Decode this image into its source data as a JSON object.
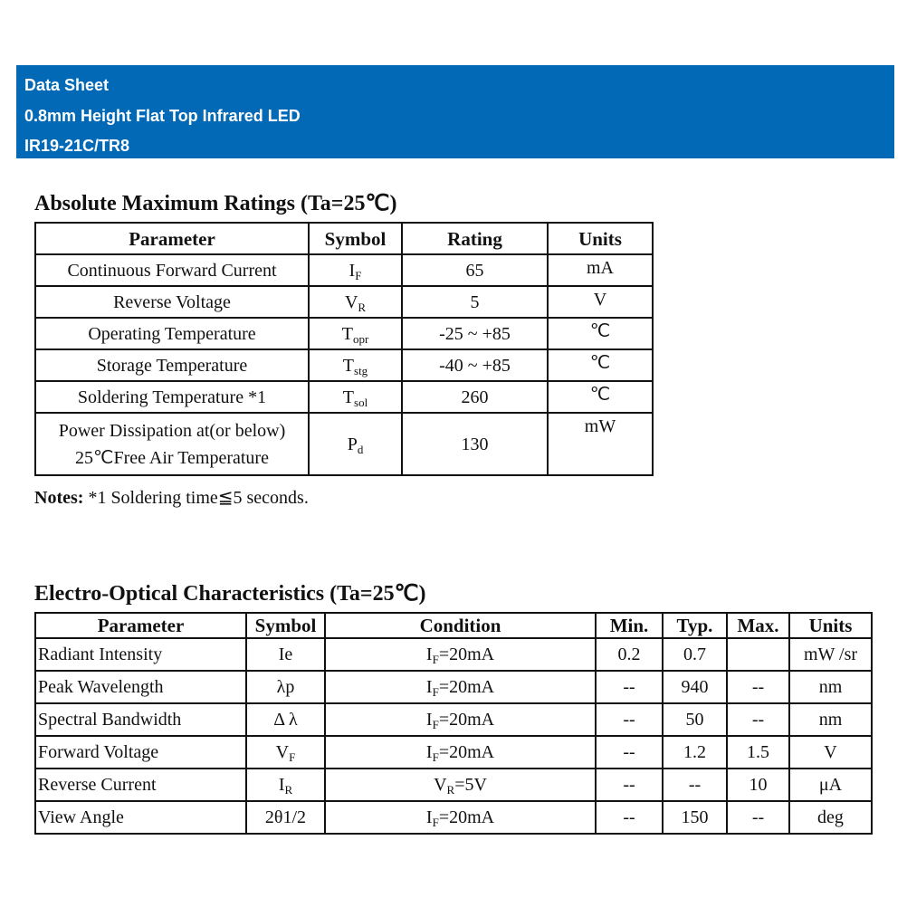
{
  "header": {
    "title": "Data Sheet",
    "subtitle": "0.8mm Height Flat Top Infrared LED",
    "part_number": "IR19-21C/TR8",
    "color": "#0169b5"
  },
  "absolute_max": {
    "title": "Absolute Maximum Ratings (Ta=25℃)",
    "columns": [
      "Parameter",
      "Symbol",
      "Rating",
      "Units"
    ],
    "rows": [
      {
        "parameter": "Continuous Forward Current",
        "symbol": "I",
        "symbol_sub": "F",
        "rating": "65",
        "units": "mA"
      },
      {
        "parameter": "Reverse Voltage",
        "symbol": "V",
        "symbol_sub": "R",
        "rating": "5",
        "units": "V"
      },
      {
        "parameter": "Operating Temperature",
        "symbol": "T",
        "symbol_sub": "opr",
        "rating": "-25 ~ +85",
        "units": "℃"
      },
      {
        "parameter": "Storage Temperature",
        "symbol": "T",
        "symbol_sub": "stg",
        "rating": "-40 ~ +85",
        "units": "℃"
      },
      {
        "parameter": "Soldering Temperature *1",
        "symbol": "T",
        "symbol_sub": "sol",
        "rating": "260",
        "units": "℃"
      },
      {
        "parameter": "Power Dissipation at(or below)",
        "parameter_line2": "25℃Free Air Temperature",
        "symbol": "P",
        "symbol_sub": "d",
        "rating": "130",
        "units": "mW"
      }
    ],
    "notes_label": "Notes:",
    "notes_text": " *1 Soldering time≦5 seconds."
  },
  "electro_optical": {
    "title": "Electro-Optical Characteristics (Ta=25℃)",
    "columns": [
      "Parameter",
      "Symbol",
      "Condition",
      "Min.",
      "Typ.",
      "Max.",
      "Units"
    ],
    "rows": [
      {
        "parameter": "Radiant Intensity",
        "symbol": "Ie",
        "symbol_sub": "",
        "cond": "I",
        "cond_sub": "F",
        "cond_rest": "=20mA",
        "min": "0.2",
        "typ": "0.7",
        "max": "",
        "units": "mW /sr"
      },
      {
        "parameter": "Peak Wavelength",
        "symbol": "λp",
        "symbol_sub": "",
        "cond": "I",
        "cond_sub": "F",
        "cond_rest": "=20mA",
        "min": "--",
        "typ": "940",
        "max": "--",
        "units": "nm"
      },
      {
        "parameter": "Spectral Bandwidth",
        "symbol": "Δ λ",
        "symbol_sub": "",
        "cond": "I",
        "cond_sub": "F",
        "cond_rest": "=20mA",
        "min": "--",
        "typ": "50",
        "max": "--",
        "units": "nm"
      },
      {
        "parameter": "Forward Voltage",
        "symbol": "V",
        "symbol_sub": "F",
        "cond": "I",
        "cond_sub": "F",
        "cond_rest": "=20mA",
        "min": "--",
        "typ": "1.2",
        "max": "1.5",
        "units": "V"
      },
      {
        "parameter": "Reverse Current",
        "symbol": "I",
        "symbol_sub": "R",
        "cond": "V",
        "cond_sub": "R",
        "cond_rest": "=5V",
        "min": "--",
        "typ": "--",
        "max": "10",
        "units": "μA"
      },
      {
        "parameter": "View Angle",
        "symbol": "2θ1/2",
        "symbol_sub": "",
        "cond": "I",
        "cond_sub": "F",
        "cond_rest": "=20mA",
        "min": "--",
        "typ": "150",
        "max": "--",
        "units": "deg"
      }
    ]
  }
}
